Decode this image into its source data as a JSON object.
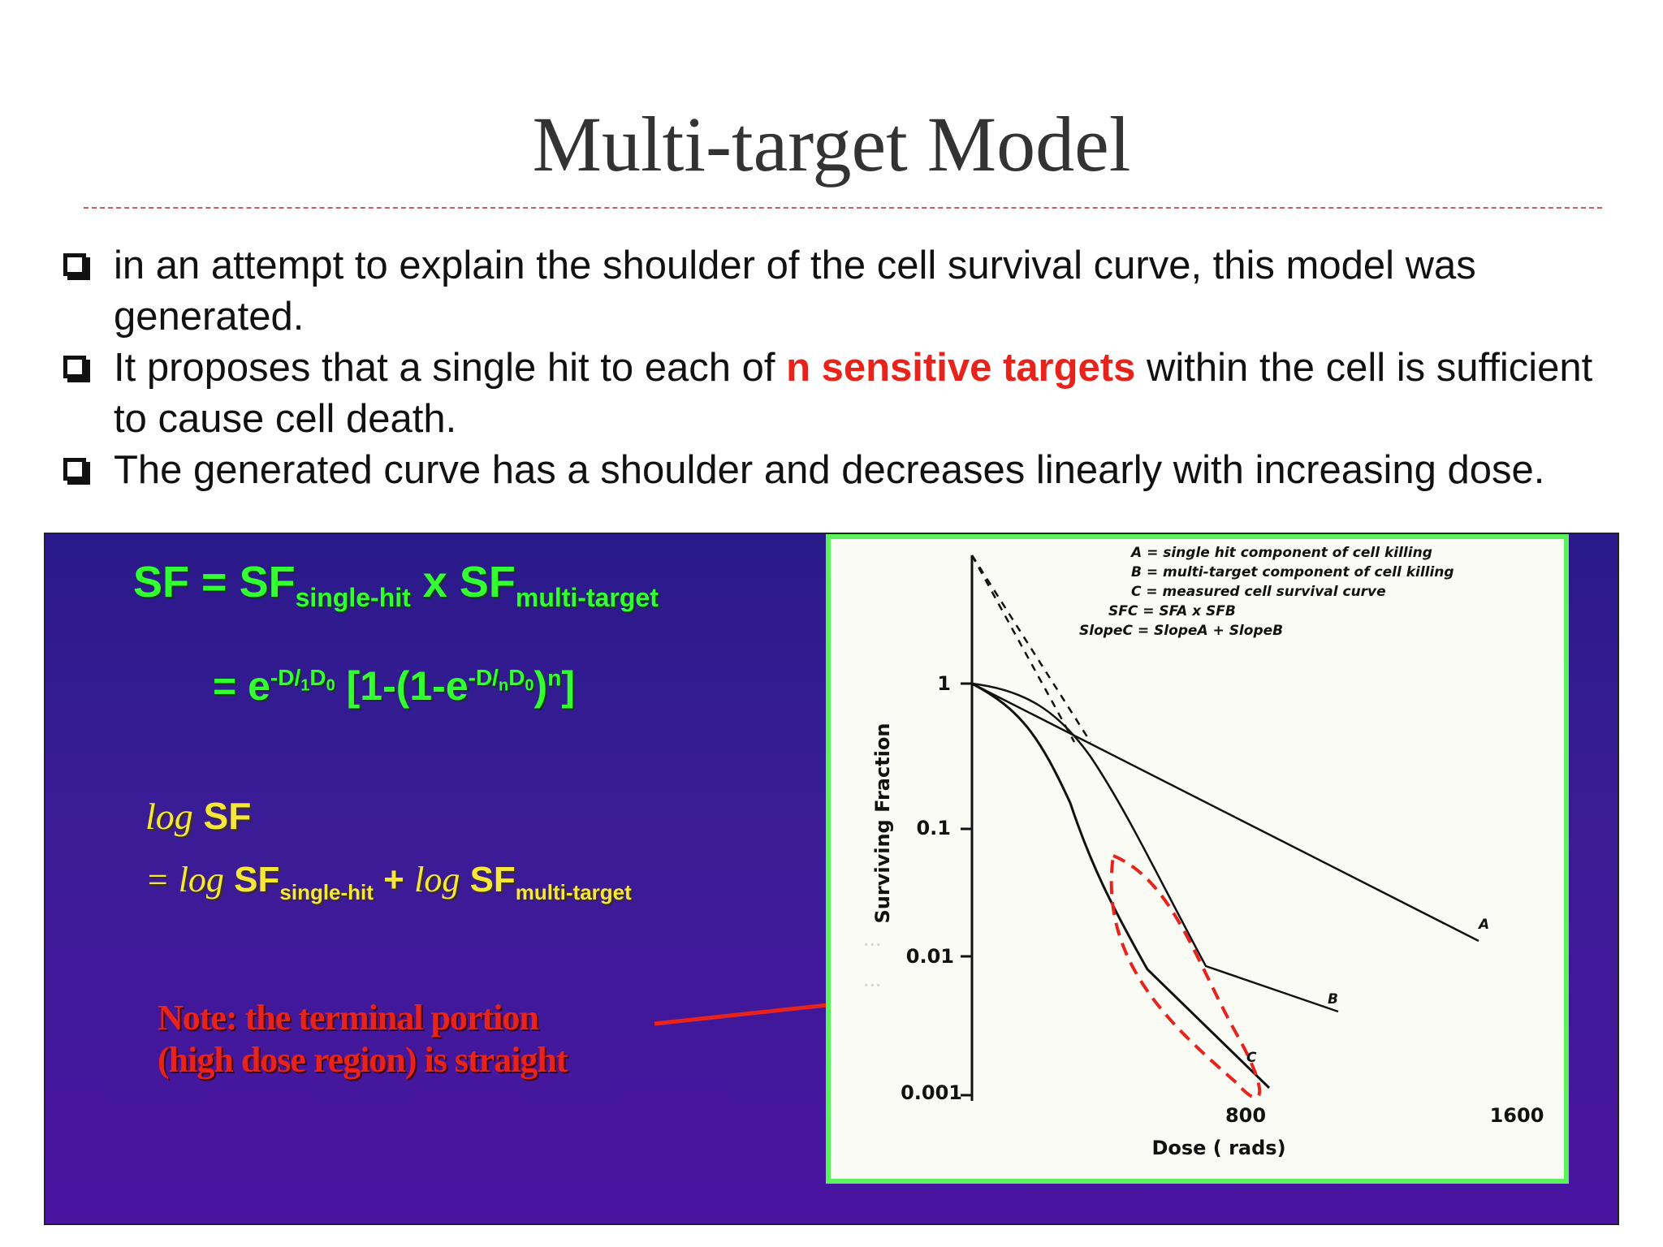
{
  "slide": {
    "title": "Multi-target Model",
    "bullets": {
      "b1": "in an attempt to explain the shoulder of the cell survival curve, this model was generated.",
      "b2_before": "It proposes that a single hit to each of ",
      "b2_highlight": "n sensitive targets",
      "b2_after": " within the cell is sufficient to cause cell death.",
      "b3": "The generated curve has a shoulder and decreases linearly with increasing dose."
    }
  },
  "equations": {
    "sf": "SF",
    "eq": " = ",
    "sf2": "SF",
    "sub_single": "single-hit",
    "times": " x ",
    "sf3": "SF",
    "sub_multi": "multi-target",
    "line2_prefix": "= e",
    "line2_exp1": "-D/",
    "line2_sub1": "1",
    "line2_D0a": "D",
    "line2_sub0a": "0",
    "line2_mid": " [1-(1-e",
    "line2_exp2": "-D/",
    "line2_subn": "n",
    "line2_D0b": "D",
    "line2_sub0b": "0",
    "line2_close": ")",
    "line2_n": "n",
    "line2_end": "]",
    "log_word": "log",
    "log_sf": " SF",
    "log_line2_eq": "= ",
    "log_word2": "log",
    "log_sf2": " SF",
    "log_sub_single": "single-hit",
    "log_plus": " + ",
    "log_word3": "log",
    "log_sf3": " SF",
    "log_sub_multi": "multi-target"
  },
  "note": {
    "line1": "Note: the terminal portion",
    "line2": "(high dose region) is straight"
  },
  "plot": {
    "legend": {
      "A": "A = single hit component of cell killing",
      "B": "B = multi-target component of cell killing",
      "C": "C = measured cell survival curve",
      "eq1": "SFC = SFA x SFB",
      "eq2": "SlopeC = SlopeA + SlopeB"
    },
    "y_axis_title": "Surviving Fraction",
    "x_axis_title": "Dose ( rads)",
    "y_ticks": [
      "1",
      "0.1",
      "0.01",
      "0.001"
    ],
    "x_ticks": [
      "800",
      "1600"
    ],
    "curve_labels": {
      "A": "A",
      "B": "B",
      "C": "C"
    },
    "colors": {
      "highlight": "#e8231c",
      "panel_border": "#5bf25b"
    },
    "ghost_text": [
      "...",
      "..."
    ]
  },
  "chart_data": {
    "type": "line",
    "xlabel": "Dose ( rads)",
    "ylabel": "Surviving Fraction",
    "x_ticks": [
      800,
      1600
    ],
    "y_ticks": [
      1,
      0.1,
      0.01,
      0.001
    ],
    "y_scale": "log",
    "series": [
      {
        "name": "A",
        "x": [
          0,
          1600
        ],
        "y": [
          1,
          0.015
        ]
      },
      {
        "name": "B",
        "x": [
          0,
          200,
          400,
          600,
          800,
          1100
        ],
        "y": [
          1,
          0.8,
          0.3,
          0.1,
          0.03,
          0.004
        ]
      },
      {
        "name": "C",
        "x": [
          0,
          200,
          400,
          600,
          800,
          900
        ],
        "y": [
          1,
          0.6,
          0.2,
          0.02,
          0.003,
          0.001
        ]
      }
    ]
  }
}
